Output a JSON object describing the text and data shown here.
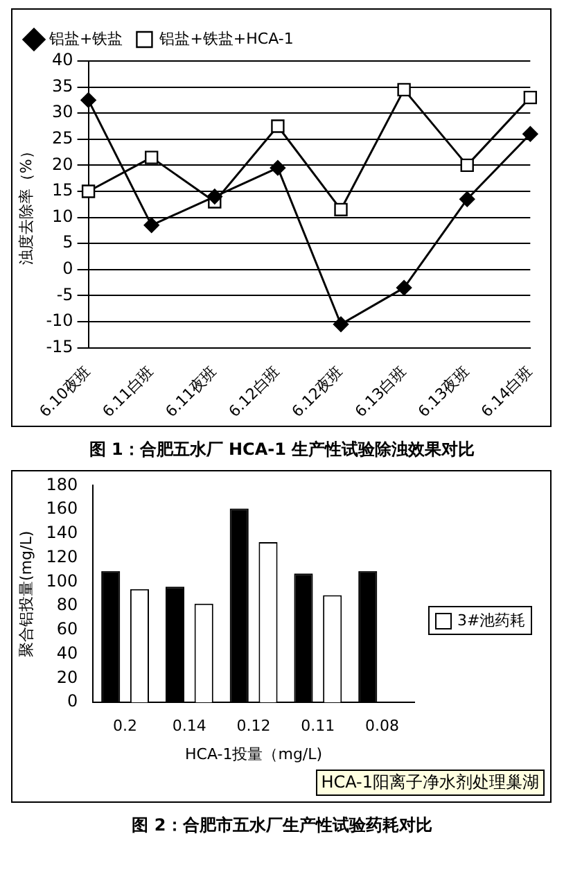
{
  "chart_data": [
    {
      "type": "line",
      "ylabel": "浊度去除率（%）",
      "annotations": [
        "图 1：合肥五水厂 HCA-1 生产性试验除浊效果对比"
      ],
      "categories": [
        "6.10夜班",
        "6.11白班",
        "6.11夜班",
        "6.12白班",
        "6.12夜班",
        "6.13白班",
        "6.13夜班",
        "6.14白班"
      ],
      "series": [
        {
          "name": "铝盐+铁盐",
          "color": "#000000",
          "marker": "diamond",
          "values": [
            32.5,
            8.5,
            14,
            19.5,
            -10.5,
            -3.5,
            13.5,
            26
          ]
        },
        {
          "name": "铝盐+铁盐+HCA-1",
          "color": "#000000",
          "marker": "square",
          "values": [
            15,
            21.5,
            13,
            27.5,
            11.5,
            34.5,
            20,
            33
          ]
        }
      ],
      "ylim": [
        -15,
        40
      ],
      "yticks": [
        -15,
        -10,
        -5,
        0,
        5,
        10,
        15,
        20,
        25,
        30,
        35,
        40
      ],
      "grid": "y",
      "legend": "top left",
      "line_style": "solid"
    },
    {
      "type": "bar",
      "ylabel": "聚合铝投量(mg/L)",
      "xlabel": "HCA-1投量（mg/L)",
      "annotations": [
        "HCA-1阳离子净水剂处理巢湖",
        "图 2：合肥市五水厂生产性试验药耗对比"
      ],
      "categories": [
        "0.2",
        "0.14",
        "0.12",
        "0.11",
        "0.08"
      ],
      "series": [
        {
          "color": "#000000",
          "values": [
            109,
            96,
            161,
            107,
            109
          ]
        },
        {
          "name": "3#池药耗",
          "color": "#ffffff",
          "values": [
            94,
            82,
            133,
            89,
            null
          ]
        }
      ],
      "ylim": [
        0,
        180
      ],
      "yticks": [
        0,
        20,
        40,
        60,
        80,
        100,
        120,
        140,
        160,
        180
      ],
      "grid": false,
      "legend": "right"
    }
  ]
}
